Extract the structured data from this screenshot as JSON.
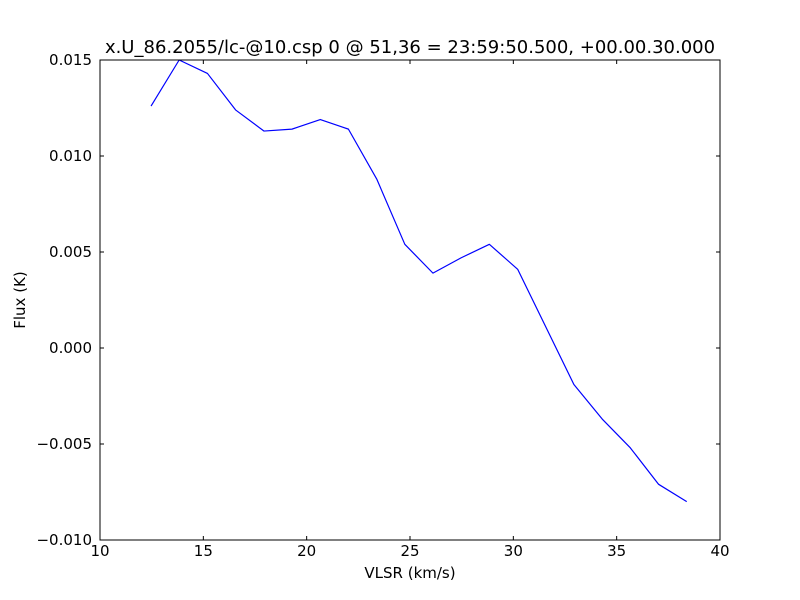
{
  "chart_data": {
    "type": "line",
    "title": "x.U_86.2055/lc-@10.csp 0 @ 51,36 = 23:59:50.500, +00.00.30.000",
    "xlabel": "VLSR (km/s)",
    "ylabel": "Flux (K)",
    "xlim": [
      10,
      40
    ],
    "ylim": [
      -0.01,
      0.015
    ],
    "x_ticks": [
      "10",
      "15",
      "20",
      "25",
      "30",
      "35",
      "40"
    ],
    "x_tick_values": [
      10,
      15,
      20,
      25,
      30,
      35,
      40
    ],
    "y_ticks": [
      "−0.010",
      "−0.005",
      "0.000",
      "0.005",
      "0.010",
      "0.015"
    ],
    "y_tick_values": [
      -0.01,
      -0.005,
      0.0,
      0.005,
      0.01,
      0.015
    ],
    "grid": false,
    "series": [
      {
        "color": "#0000ff",
        "x": [
          12.47,
          13.83,
          15.2,
          16.56,
          17.93,
          19.29,
          20.66,
          22.02,
          23.39,
          24.75,
          26.11,
          27.48,
          28.84,
          30.21,
          31.57,
          32.93,
          34.3,
          35.66,
          37.03,
          38.39
        ],
        "y": [
          0.0126,
          0.015,
          0.0143,
          0.0124,
          0.0113,
          0.0114,
          0.0119,
          0.0114,
          0.0088,
          0.0054,
          0.0039,
          0.0047,
          0.0054,
          0.0041,
          0.0011,
          -0.0019,
          -0.0037,
          -0.0052,
          -0.0071,
          -0.008
        ]
      }
    ]
  }
}
